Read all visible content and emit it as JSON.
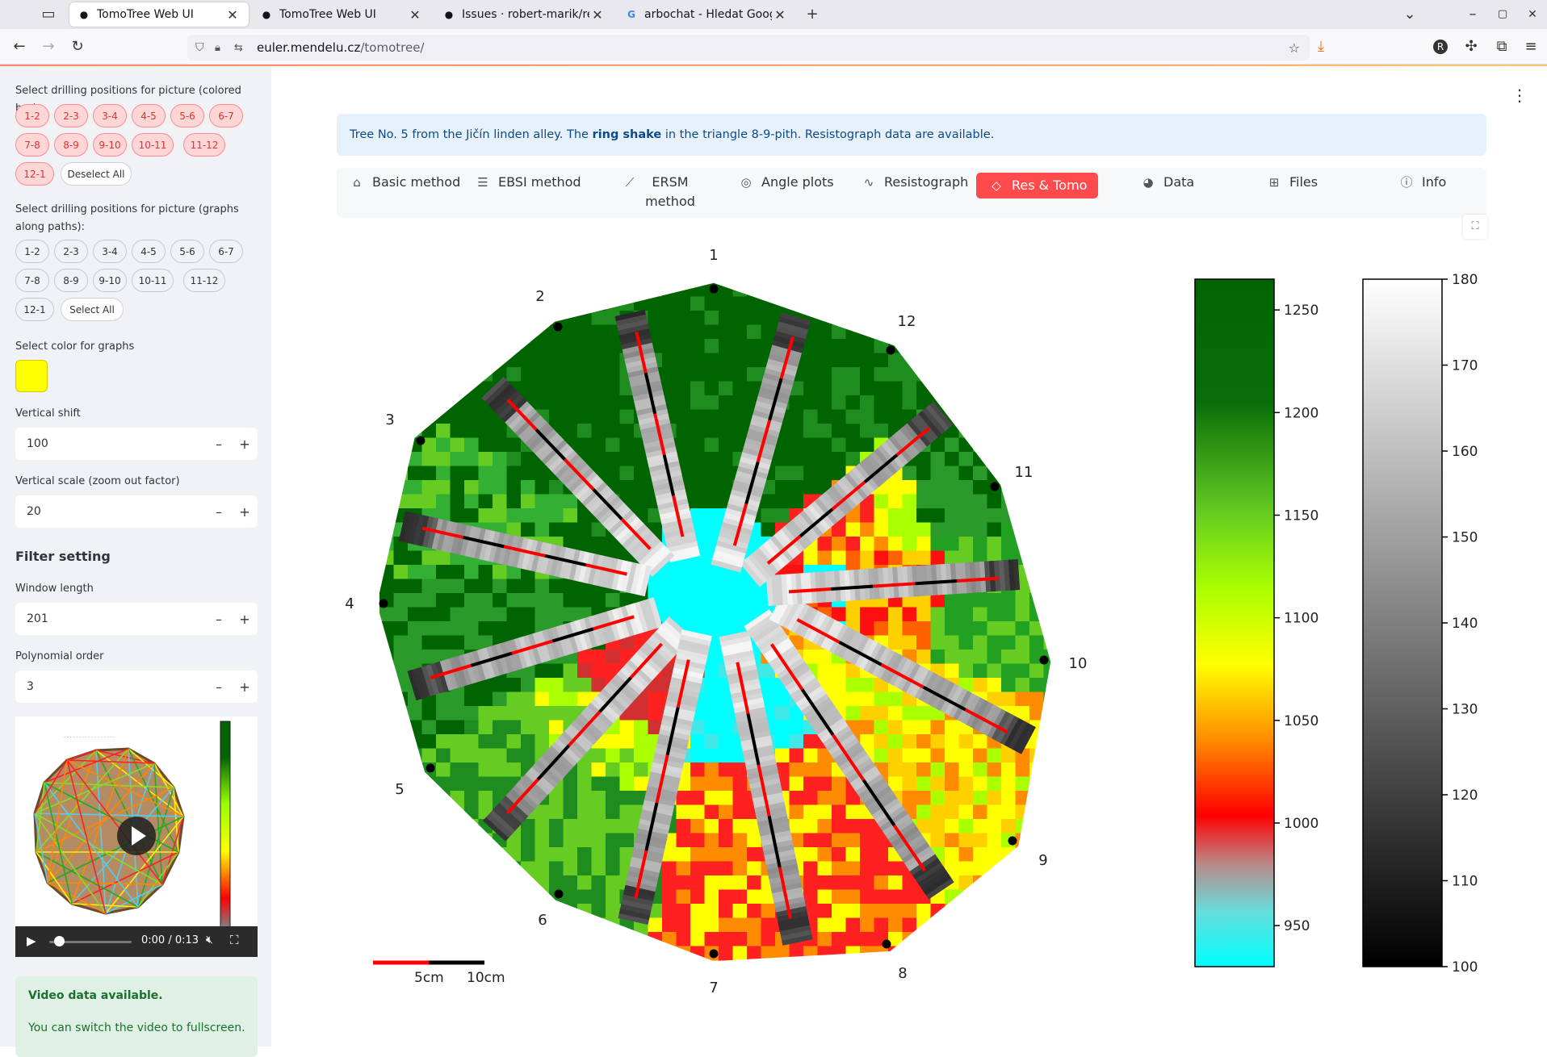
{
  "browser": {
    "tabs": [
      {
        "title": "TomoTree Web UI",
        "active": true,
        "favicon": "github-octocat-icon"
      },
      {
        "title": "TomoTree Web UI",
        "active": false,
        "favicon": "github-octocat-icon"
      },
      {
        "title": "Issues · robert-marik/resis",
        "active": false,
        "favicon": "github-icon"
      },
      {
        "title": "arbochat - Hledat Googlem",
        "active": false,
        "favicon": "google-icon"
      }
    ],
    "url_host": "euler.mendelu.cz",
    "url_path": "/tomotree/"
  },
  "sidebar": {
    "colored_bar_label": "Select drilling positions for picture (colored bar):",
    "colored_bar_pills": [
      "1-2",
      "2-3",
      "3-4",
      "4-5",
      "5-6",
      "6-7",
      "7-8",
      "8-9",
      "9-10",
      "10-11",
      "11-12",
      "12-1"
    ],
    "deselect_all": "Deselect All",
    "graphs_label": "Select drilling positions for picture (graphs along paths):",
    "graph_pills": [
      "1-2",
      "2-3",
      "3-4",
      "4-5",
      "5-6",
      "6-7",
      "7-8",
      "8-9",
      "9-10",
      "10-11",
      "11-12",
      "12-1"
    ],
    "select_all": "Select All",
    "color_label": "Select color for graphs",
    "graph_color": "#ffff00",
    "vshift_label": "Vertical shift",
    "vshift_value": "100",
    "vscale_label": "Vertical scale (zoom out factor)",
    "vscale_value": "20",
    "filter_heading": "Filter setting",
    "window_label": "Window length",
    "window_value": "201",
    "poly_label": "Polynomial order",
    "poly_value": "3",
    "video_time": "0:00 / 0:13",
    "alert_title": "Video data available.",
    "alert_text": "You can switch the video to fullscreen."
  },
  "main": {
    "banner_prefix": "Tree No. 5 from the Jičín linden alley. The ",
    "banner_bold": "ring shake",
    "banner_suffix": " in the triangle 8-9-pith. Resistograph data are available.",
    "tabs": [
      {
        "label": "Basic method",
        "icon": "home-icon"
      },
      {
        "label": "EBSI method",
        "icon": "database-icon"
      },
      {
        "label": "ERSM method",
        "icon": "line-chart-icon"
      },
      {
        "label": "Angle plots",
        "icon": "compass-icon"
      },
      {
        "label": "Resistograph",
        "icon": "pulse-icon"
      },
      {
        "label": "Res & Tomo",
        "icon": "diamond-icon",
        "active": true
      },
      {
        "label": "Data",
        "icon": "palette-icon"
      },
      {
        "label": "Files",
        "icon": "sitemap-icon"
      },
      {
        "label": "Info",
        "icon": "info-icon"
      }
    ]
  },
  "figure": {
    "sensor_labels": [
      "1",
      "2",
      "3",
      "4",
      "5",
      "6",
      "7",
      "8",
      "9",
      "10",
      "11",
      "12"
    ],
    "scalebar_labels": [
      "5cm",
      "10cm"
    ],
    "colorbar_velocity": {
      "ticks": [
        "950",
        "1000",
        "1050",
        "1100",
        "1150",
        "1200",
        "1250"
      ],
      "min": 930,
      "max": 1265
    },
    "colorbar_resist": {
      "ticks": [
        "100",
        "110",
        "120",
        "130",
        "140",
        "150",
        "160",
        "170",
        "180"
      ],
      "min": 100,
      "max": 180
    },
    "colors": {
      "dark_green": "#006400",
      "cyan": "#00ffff",
      "red": "#ff0000",
      "yellow": "#ffff00"
    }
  }
}
